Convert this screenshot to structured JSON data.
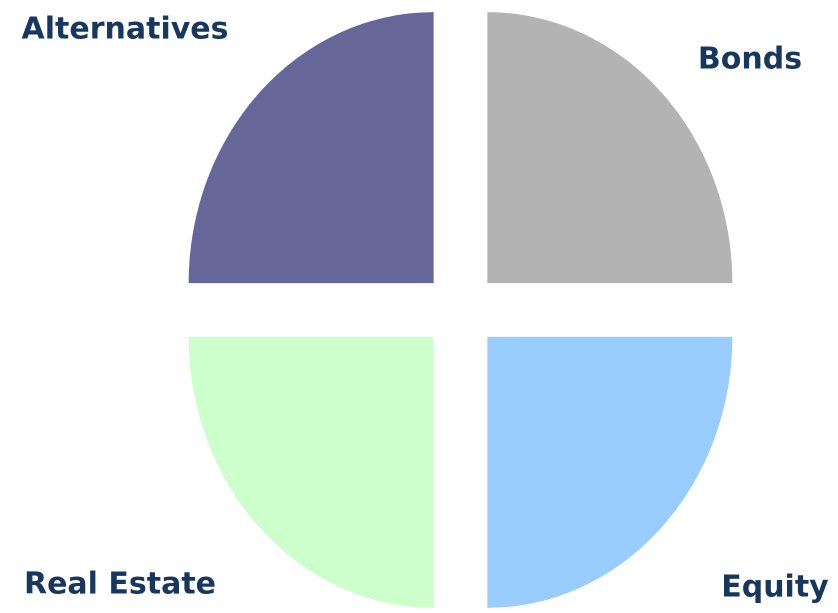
{
  "chart_data": {
    "type": "pie",
    "categories": [
      "Bonds",
      "Equity",
      "Real Estate",
      "Alternatives"
    ],
    "values": [
      25,
      25,
      25,
      25
    ],
    "colors": [
      "#b3b3b3",
      "#99ccff",
      "#ccffcc",
      "#666699"
    ],
    "exploded": true
  }
}
